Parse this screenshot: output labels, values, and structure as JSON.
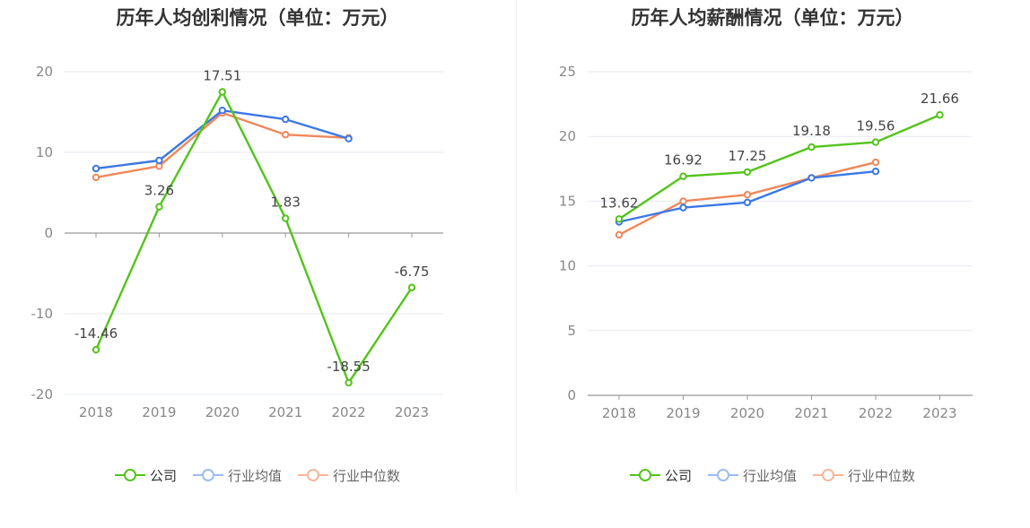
{
  "charts": [
    {
      "title": "历年人均创利情况（单位：万元）",
      "legend": [
        "公司",
        "行业均值",
        "行业中位数"
      ]
    },
    {
      "title": "历年人均薪酬情况（单位：万元）",
      "legend": [
        "公司",
        "行业均值",
        "行业中位数"
      ]
    }
  ],
  "colors": {
    "company": "#52c41a",
    "industry_avg": "#3b78e7",
    "industry_median": "#f0875a"
  },
  "chart_data": [
    {
      "type": "line",
      "title": "历年人均创利情况（单位：万元）",
      "categories": [
        "2018",
        "2019",
        "2020",
        "2021",
        "2022",
        "2023"
      ],
      "ylim": [
        -20,
        20
      ],
      "yticks": [
        20,
        10,
        0,
        -10,
        -20
      ],
      "grid": true,
      "legend_position": "bottom",
      "series": [
        {
          "name": "公司",
          "values": [
            -14.46,
            3.26,
            17.51,
            1.83,
            -18.55,
            -6.75
          ],
          "labels": [
            "-14.46",
            "3.26",
            "17.51",
            "1.83",
            "-18.55",
            "-6.75"
          ]
        },
        {
          "name": "行业均值",
          "values": [
            8.0,
            9.0,
            15.2,
            14.1,
            11.7,
            null
          ]
        },
        {
          "name": "行业中位数",
          "values": [
            6.9,
            8.3,
            14.9,
            12.2,
            11.8,
            null
          ]
        }
      ]
    },
    {
      "type": "line",
      "title": "历年人均薪酬情况（单位：万元）",
      "categories": [
        "2018",
        "2019",
        "2020",
        "2021",
        "2022",
        "2023"
      ],
      "ylim": [
        0,
        25
      ],
      "yticks": [
        25,
        20,
        15,
        10,
        5,
        0
      ],
      "grid": true,
      "legend_position": "bottom",
      "series": [
        {
          "name": "公司",
          "values": [
            13.62,
            16.92,
            17.25,
            19.18,
            19.56,
            21.66
          ],
          "labels": [
            "13.62",
            "16.92",
            "17.25",
            "19.18",
            "19.56",
            "21.66"
          ]
        },
        {
          "name": "行业均值",
          "values": [
            13.4,
            14.5,
            14.9,
            16.8,
            17.3,
            null
          ]
        },
        {
          "name": "行业中位数",
          "values": [
            12.4,
            15.0,
            15.5,
            16.8,
            18.0,
            null
          ]
        }
      ]
    }
  ]
}
